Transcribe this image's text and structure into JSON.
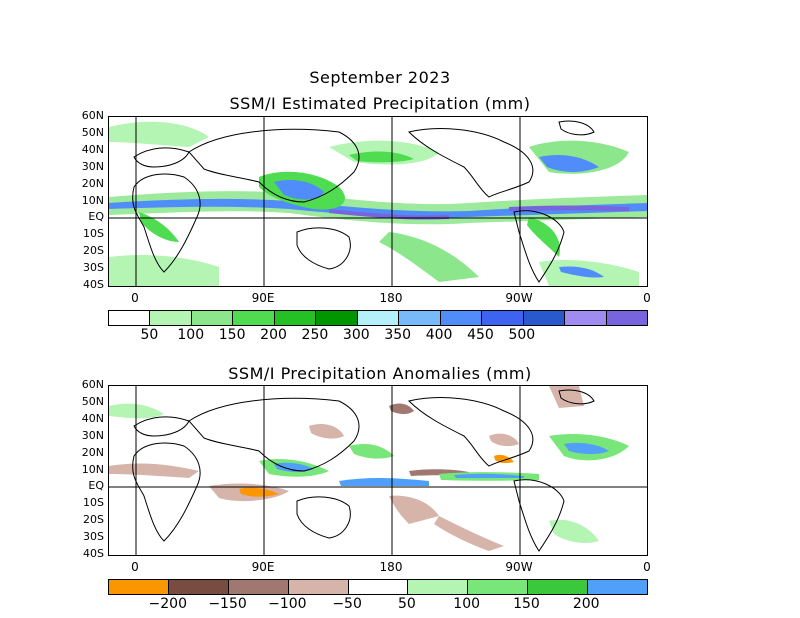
{
  "title_line": "September 2023",
  "panel1": {
    "title": "SSM/I Estimated Precipitation (mm)",
    "lat_labels": [
      "60N",
      "50N",
      "40N",
      "30N",
      "20N",
      "10N",
      "EQ",
      "10S",
      "20S",
      "30S",
      "40S"
    ],
    "lon_labels": [
      "0",
      "90E",
      "180",
      "90W",
      "0"
    ],
    "colorbar": {
      "colors": [
        "#ffffff",
        "#b4f5b4",
        "#8ce68c",
        "#50dc50",
        "#24c024",
        "#009600",
        "#b4f0fa",
        "#78b9fa",
        "#508cfa",
        "#3c64f0",
        "#285acd",
        "#a08cf0",
        "#7864dc"
      ],
      "labels": [
        "50",
        "100",
        "150",
        "200",
        "250",
        "300",
        "350",
        "400",
        "450",
        "500"
      ]
    }
  },
  "panel2": {
    "title": "SSM/I Precipitation Anomalies (mm)",
    "lat_labels": [
      "60N",
      "50N",
      "40N",
      "30N",
      "20N",
      "10N",
      "EQ",
      "10S",
      "20S",
      "30S",
      "40S"
    ],
    "lon_labels": [
      "0",
      "90E",
      "180",
      "90W",
      "0"
    ],
    "colorbar": {
      "colors": [
        "#fa9600",
        "#784c40",
        "#a07870",
        "#d7b4aa",
        "#ffffff",
        "#b4f5b4",
        "#78e678",
        "#3cc83c",
        "#50a0fa"
      ],
      "labels": [
        "−200",
        "−150",
        "−100",
        "−50",
        "50",
        "100",
        "150",
        "200"
      ]
    }
  }
}
